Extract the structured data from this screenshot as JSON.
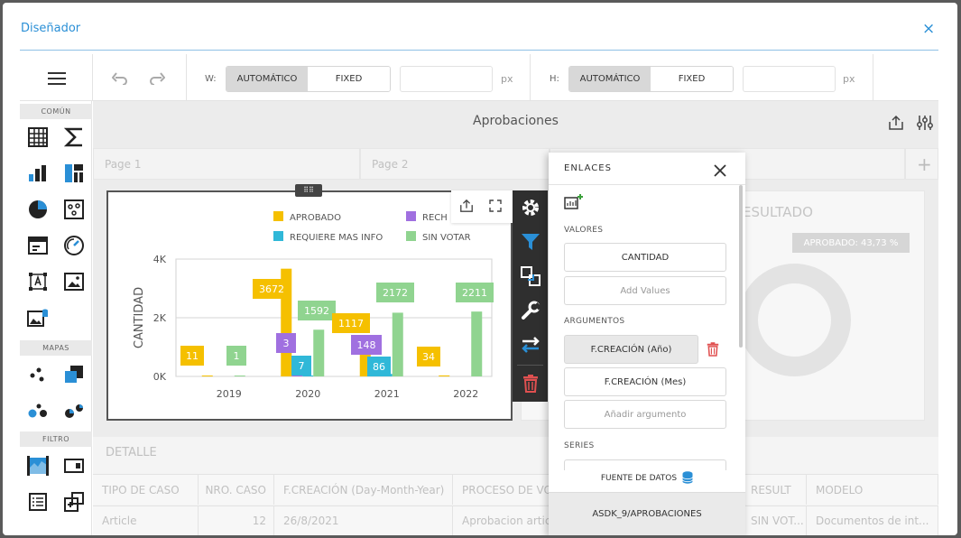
{
  "dialog": {
    "title": "Diseñador",
    "close_label": "×"
  },
  "toolbar": {
    "width_label": "W:",
    "height_label": "H:",
    "automatic_label": "AUTOMÁTICO",
    "fixed_label": "FIXED",
    "unit_label": "px",
    "width_value": "",
    "height_value": ""
  },
  "sections": {
    "common": "COMÚN",
    "maps": "MAPAS",
    "filter": "FILTRO"
  },
  "dashboard": {
    "title": "Aprobaciones",
    "pages": [
      "Page 1",
      "Page 2"
    ],
    "add_page_label": "+"
  },
  "chart_data": {
    "type": "bar",
    "ylabel": "CANTIDAD",
    "xlabel": "",
    "categories": [
      "2019",
      "2020",
      "2021",
      "2022"
    ],
    "y_ticks": [
      "0K",
      "2K",
      "4K"
    ],
    "ylim": [
      0,
      4000
    ],
    "legend_position": "top",
    "series": [
      {
        "name": "APROBADO",
        "color": "#f5c000",
        "values": [
          11,
          3672,
          1117,
          34
        ]
      },
      {
        "name": "RECHAZADO",
        "color": "#a070e0",
        "values": [
          0,
          3,
          148,
          0
        ]
      },
      {
        "name": "REQUIERE MAS INFO",
        "color": "#30b8d8",
        "values": [
          0,
          7,
          86,
          0
        ]
      },
      {
        "name": "SIN VOTAR",
        "color": "#90d490",
        "values": [
          1,
          1592,
          2172,
          2211
        ]
      }
    ],
    "data_labels": [
      "11",
      "1",
      "3672",
      "3",
      "7",
      "1592",
      "1117",
      "148",
      "86",
      "2172",
      "34",
      "2211"
    ]
  },
  "legend_display": [
    "APROBADO",
    "RECH",
    "REQUIERE MAS INFO",
    "SIN VOTAR"
  ],
  "result_card": {
    "label": "ESULTADO",
    "pill": "APROBADO: 43,73 %"
  },
  "detail": {
    "title": "DETALLE",
    "headers": [
      "TIPO DE CASO",
      "NRO. CASO",
      "F.CREACIÓN (Day-Month-Year)",
      "PROCESO DE VO",
      "RESULT",
      "MODELO"
    ],
    "row": [
      "Article",
      "12",
      "26/8/2021",
      "Aprobacion artic",
      "SIN VOT...",
      "Documentos de int..."
    ]
  },
  "links_panel": {
    "title": "ENLACES",
    "values_label": "VALORES",
    "value_item": "CANTIDAD",
    "add_values": "Add Values",
    "arguments_label": "ARGUMENTOS",
    "argument_items": [
      "F.CREACIÓN (Año)",
      "F.CREACIÓN (Mes)"
    ],
    "add_argument": "Añadir argumento",
    "series_label": "SERIES",
    "datasource_label": "FUENTE DE DATOS",
    "datasource_value": "ASDK_9/APROBACIONES"
  },
  "colors": {
    "accent": "#2a8fd6",
    "vtoolbar": "#2f2f2f",
    "vtool_icon": "#ffffff",
    "filter_icon": "#2a8fd6",
    "delete_icon": "#e05050"
  }
}
